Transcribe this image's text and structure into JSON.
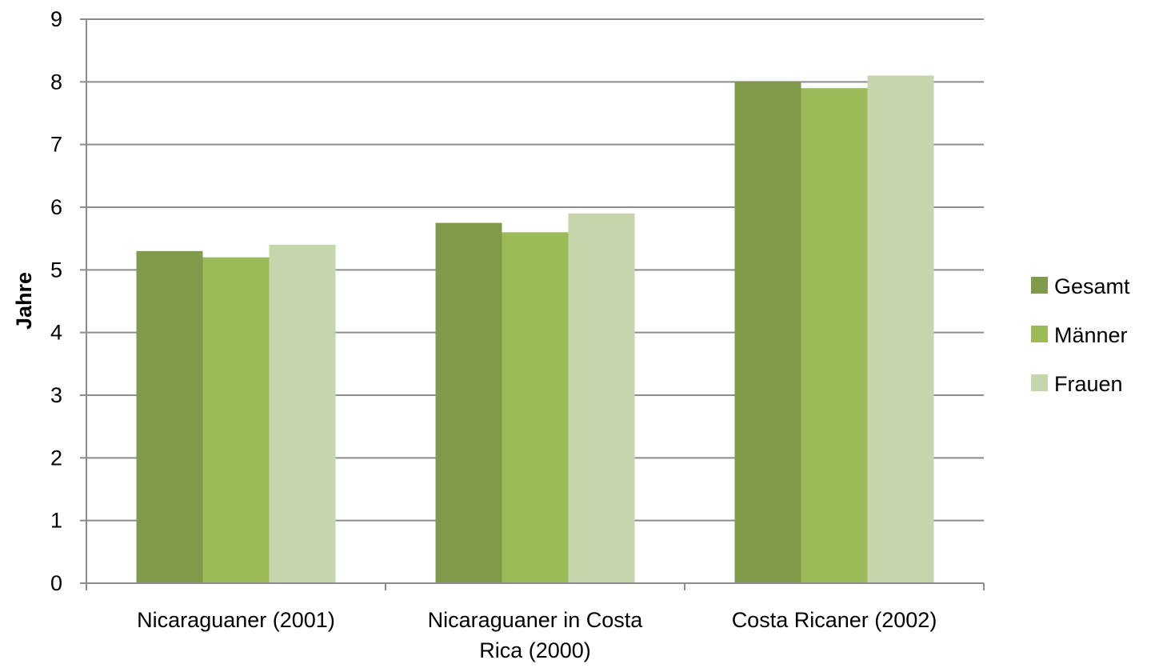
{
  "chart_data": {
    "type": "bar",
    "title": "",
    "xlabel": "",
    "ylabel": "Jahre",
    "ylim": [
      0,
      9
    ],
    "y_ticks": [
      "0",
      "1",
      "2",
      "3",
      "4",
      "5",
      "6",
      "7",
      "8",
      "9"
    ],
    "categories": [
      [
        "Nicaraguaner (2001)"
      ],
      [
        "Nicaraguaner in Costa",
        "Rica (2000)"
      ],
      [
        "Costa Ricaner (2002)"
      ]
    ],
    "series": [
      {
        "name": "Gesamt",
        "color": "#7f9a48",
        "values": [
          5.3,
          5.75,
          8.0
        ]
      },
      {
        "name": "Männer",
        "color": "#9bbb59",
        "values": [
          5.2,
          5.6,
          7.9
        ]
      },
      {
        "name": "Frauen",
        "color": "#c6d6ac",
        "values": [
          5.4,
          5.9,
          8.1
        ]
      }
    ],
    "grid": true,
    "legend_position": "right"
  }
}
